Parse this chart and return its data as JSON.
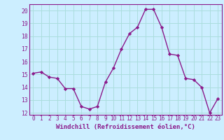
{
  "x": [
    0,
    1,
    2,
    3,
    4,
    5,
    6,
    7,
    8,
    9,
    10,
    11,
    12,
    13,
    14,
    15,
    16,
    17,
    18,
    19,
    20,
    21,
    22,
    23
  ],
  "y": [
    15.1,
    15.2,
    14.8,
    14.7,
    13.9,
    13.9,
    12.5,
    12.3,
    12.5,
    14.4,
    15.5,
    17.0,
    18.2,
    18.7,
    20.1,
    20.1,
    18.7,
    16.6,
    16.5,
    14.7,
    14.6,
    14.0,
    12.0,
    13.1
  ],
  "line_color": "#8b1a8b",
  "marker": "D",
  "marker_size": 2.2,
  "bg_color": "#cceeff",
  "grid_color": "#aadddd",
  "xlabel": "Windchill (Refroidissement éolien,°C)",
  "ylim": [
    12,
    20
  ],
  "xlim": [
    -0.5,
    23.5
  ],
  "yticks": [
    12,
    13,
    14,
    15,
    16,
    17,
    18,
    19,
    20
  ],
  "xticks": [
    0,
    1,
    2,
    3,
    4,
    5,
    6,
    7,
    8,
    9,
    10,
    11,
    12,
    13,
    14,
    15,
    16,
    17,
    18,
    19,
    20,
    21,
    22,
    23
  ],
  "tick_fontsize": 5.5,
  "xlabel_fontsize": 6.5,
  "axis_color": "#8b1a8b",
  "spine_color": "#8b1a8b",
  "linewidth": 1.0
}
